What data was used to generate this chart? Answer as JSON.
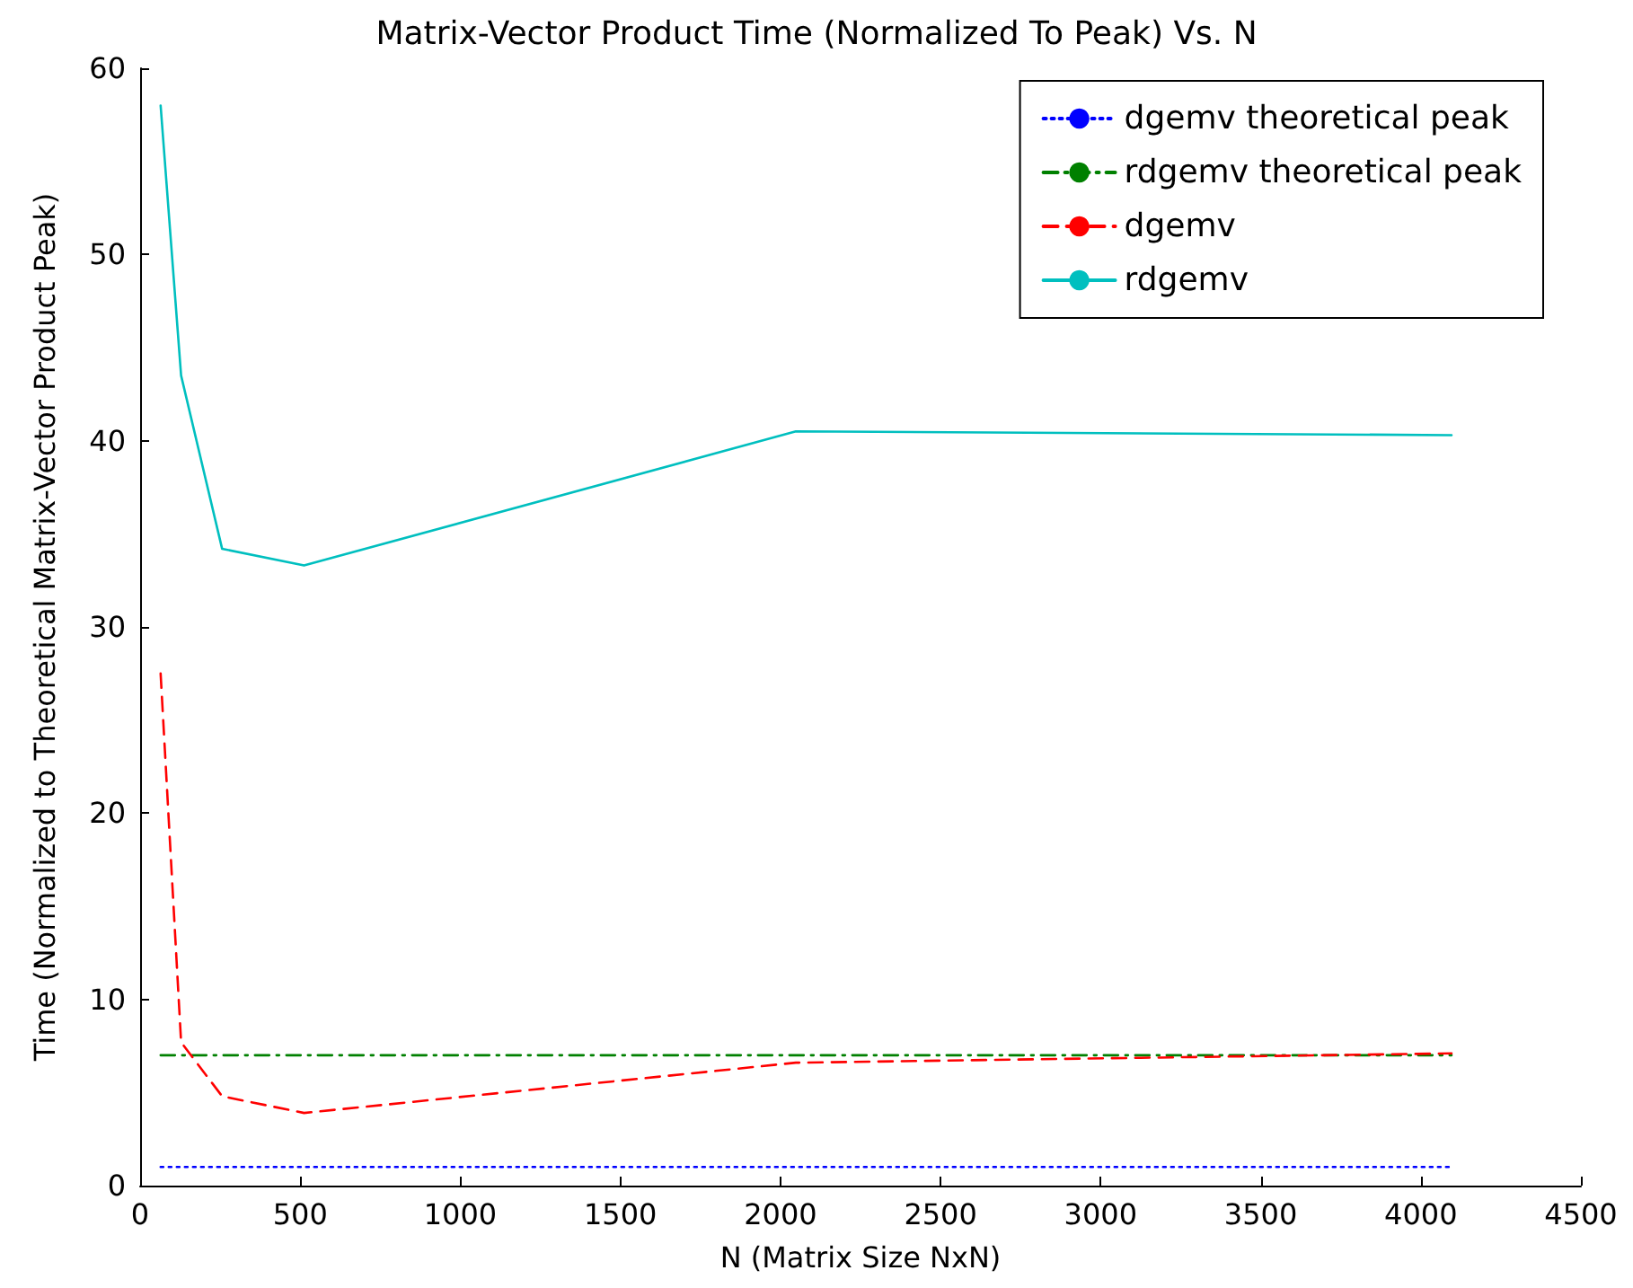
{
  "chart_data": {
    "type": "line",
    "title": "Matrix-Vector Product Time (Normalized To Peak) Vs. N",
    "xlabel": "N (Matrix Size NxN)",
    "ylabel": "Time (Normalized to Theoretical Matrix-Vector Product Peak)",
    "x": [
      64,
      128,
      256,
      512,
      2048,
      4096
    ],
    "series": [
      {
        "name": "dgemv theoretical peak",
        "color": "#0000ff",
        "line_style": "dotted",
        "values": [
          1,
          1,
          1,
          1,
          1,
          1
        ]
      },
      {
        "name": "rdgemv theoretical peak",
        "color": "#008000",
        "line_style": "dashdot",
        "values": [
          7,
          7,
          7,
          7,
          7,
          7
        ]
      },
      {
        "name": "dgemv",
        "color": "#ff0000",
        "line_style": "dashed",
        "values": [
          27.5,
          7.7,
          4.8,
          3.9,
          6.6,
          7.1
        ]
      },
      {
        "name": "rdgemv",
        "color": "#00bfbf",
        "line_style": "solid",
        "values": [
          58,
          43.5,
          34.2,
          33.3,
          40.5,
          40.3
        ]
      }
    ],
    "xlim": [
      0,
      4500
    ],
    "xticks": [
      0,
      500,
      1000,
      1500,
      2000,
      2500,
      3000,
      3500,
      4000,
      4500
    ],
    "ylim": [
      0,
      60
    ],
    "yticks": [
      0,
      10,
      20,
      30,
      40,
      50,
      60
    ],
    "grid": false,
    "legend": "top right",
    "marker": "none"
  }
}
